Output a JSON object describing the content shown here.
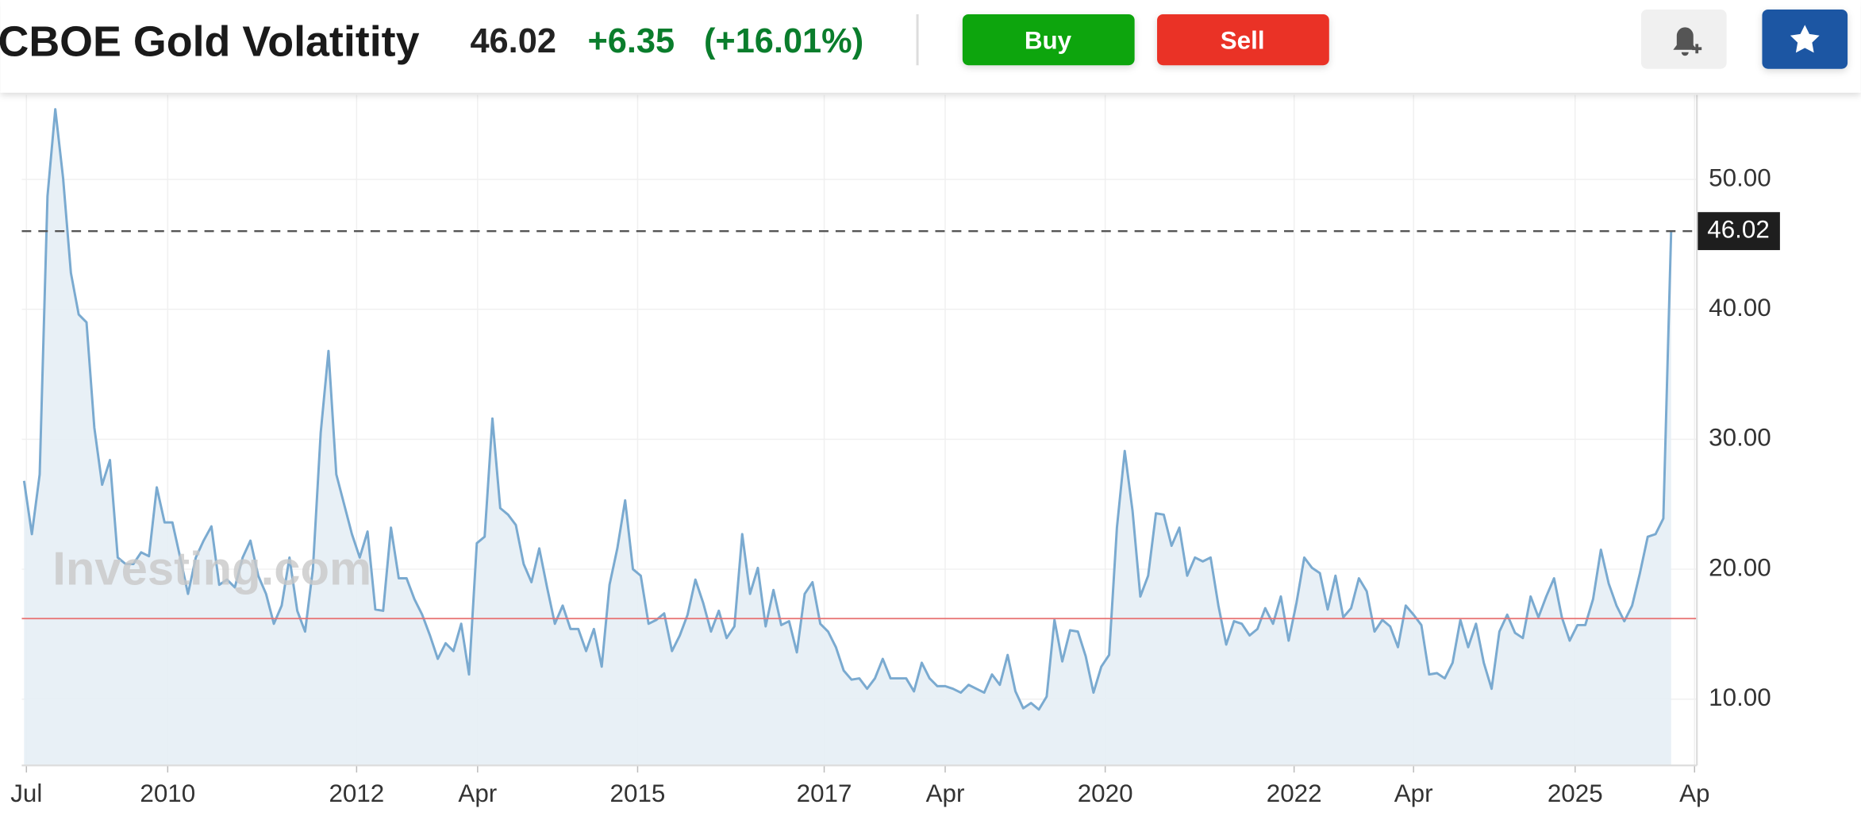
{
  "header": {
    "title": "CBOE Gold Volatitity",
    "price": "46.02",
    "change": "+6.35",
    "change_pct": "(+16.01%)",
    "buy": "Buy",
    "sell": "Sell"
  },
  "chart_data": {
    "type": "area",
    "color": "#7aaad0",
    "fill": "#e6eef5",
    "watermark": "Investing.com",
    "values": [
      26.8,
      22.7,
      27.3,
      48.7,
      55.4,
      50.1,
      42.8,
      39.6,
      39,
      30.9,
      26.5,
      28.4,
      20.9,
      20.4,
      20.4,
      21.3,
      21,
      26.3,
      23.6,
      23.6,
      20.9,
      18.1,
      20.9,
      22.2,
      23.3,
      18.8,
      19.2,
      18.6,
      20.9,
      22.2,
      19.5,
      18.1,
      15.8,
      17.2,
      20.9,
      16.8,
      15.2,
      20,
      30.5,
      36.8,
      27.3,
      25,
      22.7,
      20.9,
      22.9,
      16.9,
      16.8,
      23.2,
      19.3,
      19.3,
      17.7,
      16.5,
      14.9,
      13.1,
      14.3,
      13.7,
      15.8,
      11.9,
      22,
      22.5,
      31.6,
      24.7,
      24.2,
      23.4,
      20.4,
      19,
      21.6,
      18.6,
      15.8,
      17.2,
      15.4,
      15.4,
      13.7,
      15.4,
      12.5,
      18.8,
      21.6,
      25.3,
      20,
      19.5,
      15.8,
      16.1,
      16.6,
      13.7,
      14.9,
      16.5,
      19.2,
      17.4,
      15.2,
      16.8,
      14.7,
      15.6,
      22.7,
      18.1,
      20.1,
      15.6,
      18.4,
      15.7,
      16,
      13.6,
      18.1,
      19,
      15.8,
      15.2,
      14,
      12.2,
      11.5,
      11.6,
      10.8,
      11.6,
      13.1,
      11.6,
      11.6,
      11.6,
      10.6,
      12.8,
      11.6,
      11,
      11,
      10.8,
      10.5,
      11.1,
      10.8,
      10.5,
      11.9,
      11.1,
      13.4,
      10.6,
      9.3,
      9.7,
      9.2,
      10.2,
      16.1,
      12.9,
      15.3,
      15.2,
      13.3,
      10.5,
      12.5,
      13.4,
      23.2,
      29.1,
      24.5,
      17.9,
      19.5,
      24.3,
      24.2,
      21.8,
      23.2,
      19.5,
      20.9,
      20.6,
      20.9,
      17.2,
      14.2,
      16,
      15.8,
      14.9,
      15.4,
      17,
      15.8,
      17.9,
      14.5,
      17.4,
      20.9,
      20.1,
      19.7,
      16.9,
      19.5,
      16.3,
      17,
      19.3,
      18.3,
      15.2,
      16.1,
      15.6,
      14,
      17.2,
      16.5,
      15.7,
      11.9,
      12,
      11.6,
      12.8,
      16.1,
      14,
      15.8,
      12.8,
      10.8,
      15.2,
      16.5,
      15.1,
      14.7,
      17.9,
      16.3,
      17.9,
      19.3,
      16.3,
      14.5,
      15.7,
      15.7,
      17.7,
      21.5,
      18.9,
      17.2,
      16,
      17.2,
      19.7,
      22.5,
      22.7,
      23.9,
      46.02
    ],
    "xlim": [
      -0.3,
      214.3
    ],
    "xticks": [
      {
        "value": 0.3,
        "label": "Jul"
      },
      {
        "value": 18.4,
        "label": "2010"
      },
      {
        "value": 42.6,
        "label": "2012"
      },
      {
        "value": 58.1,
        "label": "Apr"
      },
      {
        "value": 78.6,
        "label": "2015"
      },
      {
        "value": 102.5,
        "label": "2017"
      },
      {
        "value": 118,
        "label": "Apr"
      },
      {
        "value": 138.5,
        "label": "2020"
      },
      {
        "value": 162.7,
        "label": "2022"
      },
      {
        "value": 178,
        "label": "Apr"
      },
      {
        "value": 198.7,
        "label": "2025"
      },
      {
        "value": 214,
        "label": "Ap"
      }
    ],
    "ylim": [
      4.9,
      56.5
    ],
    "yticks": [
      {
        "value": 10,
        "label": "10.00"
      },
      {
        "value": 20,
        "label": "20.00"
      },
      {
        "value": 30,
        "label": "30.00"
      },
      {
        "value": 40,
        "label": "40.00"
      },
      {
        "value": 50,
        "label": "50.00"
      }
    ],
    "price_line": {
      "value": 46.02,
      "label": "46.02"
    },
    "reference_line": 16.2,
    "grid": true
  }
}
